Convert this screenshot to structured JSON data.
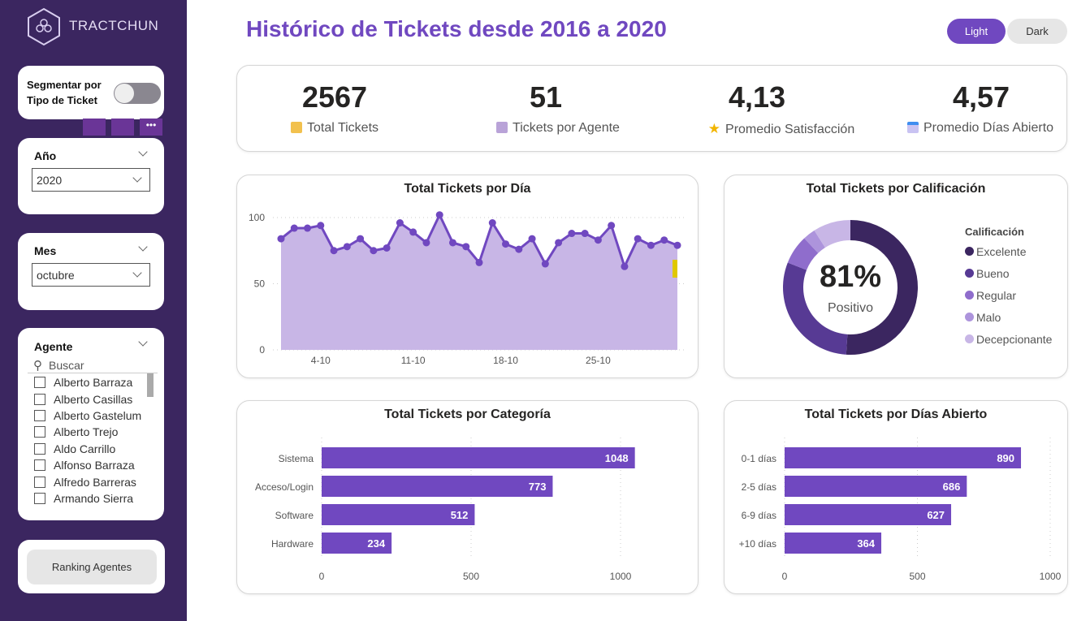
{
  "brand": {
    "name": "TRACTCHUN"
  },
  "title": "Histórico de Tickets desde 2016 a 2020",
  "theme": {
    "light": "Light",
    "dark": "Dark",
    "active": "Light",
    "accent": "#7048c0"
  },
  "filters": {
    "segment_label": "Segmentar por Tipo de Ticket",
    "segment_on": false,
    "year": {
      "label": "Año",
      "value": "2020"
    },
    "month": {
      "label": "Mes",
      "value": "octubre"
    },
    "agent": {
      "label": "Agente",
      "search_placeholder": "Buscar",
      "items": [
        "Alberto Barraza",
        "Alberto Casillas",
        "Alberto Gastelum",
        "Alberto Trejo",
        "Aldo Carrillo",
        "Alfonso Barraza",
        "Alfredo Barreras",
        "Armando Sierra"
      ]
    },
    "ranking_button": "Ranking Agentes"
  },
  "kpis": [
    {
      "value": "2567",
      "label": "Total Tickets",
      "icon": "ticket-icon"
    },
    {
      "value": "51",
      "label": "Tickets por Agente",
      "icon": "agent-icon"
    },
    {
      "value": "4,13",
      "label": "Promedio Satisfacción",
      "icon": "star-icon"
    },
    {
      "value": "4,57",
      "label": "Promedio Días Abierto",
      "icon": "calendar-icon"
    }
  ],
  "chart_data": [
    {
      "type": "area",
      "title": "Total Tickets por Día",
      "x": [
        "1-10",
        "2-10",
        "3-10",
        "4-10",
        "5-10",
        "6-10",
        "7-10",
        "8-10",
        "9-10",
        "10-10",
        "11-10",
        "12-10",
        "13-10",
        "14-10",
        "15-10",
        "16-10",
        "17-10",
        "18-10",
        "19-10",
        "20-10",
        "21-10",
        "22-10",
        "23-10",
        "24-10",
        "25-10",
        "26-10",
        "27-10",
        "28-10",
        "29-10",
        "30-10",
        "31-10"
      ],
      "values": [
        84,
        92,
        92,
        94,
        75,
        78,
        84,
        75,
        77,
        96,
        89,
        81,
        102,
        81,
        78,
        66,
        96,
        80,
        76,
        84,
        65,
        81,
        88,
        88,
        83,
        94,
        63,
        84,
        79,
        83,
        79
      ],
      "xticks": [
        "4-10",
        "11-10",
        "18-10",
        "25-10"
      ],
      "yticks": [
        "0",
        "50",
        "100"
      ],
      "ylim": [
        0,
        110
      ],
      "grid": true,
      "color": "#7048c0",
      "fill": "#c8b6e6"
    },
    {
      "type": "pie",
      "title": "Total Tickets por Calificación",
      "legend_title": "Calificación",
      "center_value": "81%",
      "center_label": "Positivo",
      "categories": [
        "Excelente",
        "Bueno",
        "Regular",
        "Malo",
        "Decepcionante"
      ],
      "values": [
        51,
        30,
        7,
        3,
        9
      ],
      "colors": [
        "#3b2660",
        "#573a94",
        "#8f6dcc",
        "#ad94dc",
        "#c8b6e6"
      ],
      "legend": "right"
    },
    {
      "type": "bar",
      "title": "Total Tickets por Categoría",
      "categories": [
        "Sistema",
        "Acceso/Login",
        "Software",
        "Hardware"
      ],
      "values": [
        1048,
        773,
        512,
        234
      ],
      "xticks": [
        "0",
        "500",
        "1000"
      ],
      "xlim": [
        0,
        1000
      ],
      "color": "#7048c0"
    },
    {
      "type": "bar",
      "title": "Total Tickets por Días Abierto",
      "categories": [
        "0-1 días",
        "2-5 días",
        "6-9 días",
        "+10 días"
      ],
      "values": [
        890,
        686,
        627,
        364
      ],
      "xticks": [
        "0",
        "500",
        "1000"
      ],
      "xlim": [
        0,
        1000
      ],
      "color": "#7048c0"
    }
  ]
}
